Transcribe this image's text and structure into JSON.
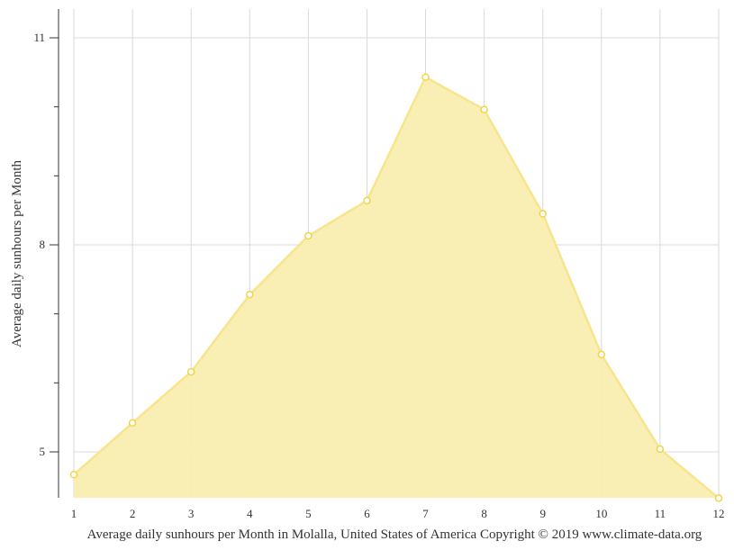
{
  "chart_data": {
    "type": "area",
    "title": "",
    "caption": "Average daily sunhours per Month in Molalla, United States of America Copyright © 2019 www.climate-data.org",
    "xlabel": "",
    "ylabel": "Average daily sunhours per Month",
    "categories": [
      "1",
      "2",
      "3",
      "4",
      "5",
      "6",
      "7",
      "8",
      "9",
      "10",
      "11",
      "12"
    ],
    "series": [
      {
        "name": "Average daily sunhours",
        "values": [
          4.67,
          5.42,
          6.16,
          7.28,
          8.13,
          8.64,
          10.43,
          9.96,
          8.45,
          6.41,
          5.04,
          4.33
        ]
      }
    ],
    "yticks": [
      5,
      8,
      11
    ],
    "ylim": [
      4.33,
      11.4
    ],
    "grid": true,
    "legend": "none",
    "colors": {
      "fill": "#f9eeb0",
      "line": "#f7e48c",
      "marker_stroke": "#f2d44a",
      "grid": "#d9d9d9",
      "axis": "#333333"
    }
  }
}
